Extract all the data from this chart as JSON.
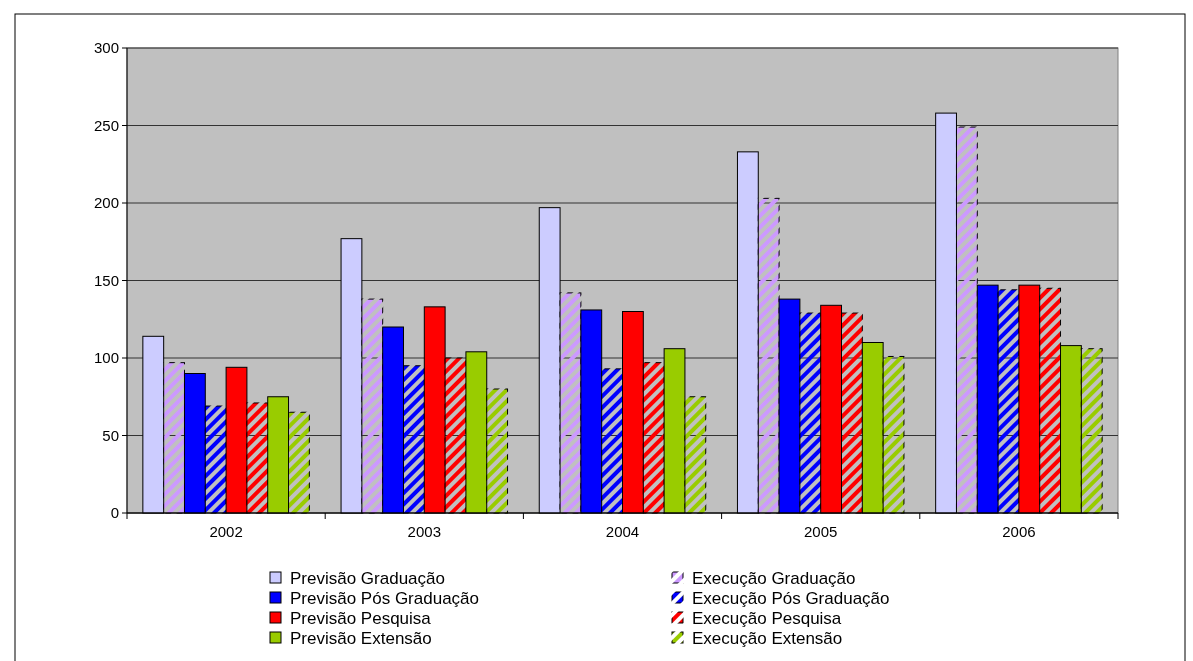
{
  "chart_data": {
    "type": "bar",
    "categories": [
      "2002",
      "2003",
      "2004",
      "2005",
      "2006"
    ],
    "series": [
      {
        "name": "Previsão Graduação",
        "color": "#ccccff",
        "values": [
          114,
          177,
          197,
          233,
          258
        ]
      },
      {
        "name": "Execução Graduação",
        "color": "#cc99ff",
        "values": [
          97,
          138,
          142,
          203,
          249
        ]
      },
      {
        "name": "Previsão Pós Graduação",
        "color": "#0000ff",
        "values": [
          90,
          120,
          131,
          138,
          147
        ]
      },
      {
        "name": "Execução Pós Graduação",
        "color": "#0000ff",
        "values": [
          69,
          95,
          93,
          129,
          144
        ]
      },
      {
        "name": "Previsão Pesquisa",
        "color": "#ff0000",
        "values": [
          94,
          133,
          130,
          134,
          147
        ]
      },
      {
        "name": "Execução Pesquisa",
        "color": "#ff0000",
        "values": [
          71,
          100,
          97,
          129,
          145
        ]
      },
      {
        "name": "Previsão Extensão",
        "color": "#99cc00",
        "values": [
          75,
          104,
          106,
          110,
          108
        ]
      },
      {
        "name": "Execução Extensão",
        "color": "#99cc00",
        "values": [
          65,
          80,
          75,
          101,
          106
        ]
      }
    ],
    "ylim": [
      0,
      300
    ],
    "yticks": [
      0,
      50,
      100,
      150,
      200,
      250,
      300
    ],
    "grid": "y",
    "legend": "bottom"
  }
}
